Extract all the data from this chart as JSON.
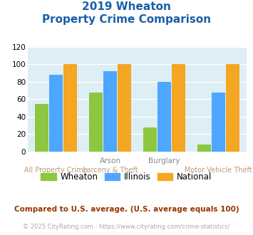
{
  "title_line1": "2019 Wheaton",
  "title_line2": "Property Crime Comparison",
  "wheaton": [
    55,
    68,
    28,
    8
  ],
  "illinois": [
    88,
    92,
    80,
    68
  ],
  "national": [
    100,
    100,
    100,
    100
  ],
  "color_wheaton": "#8dc63f",
  "color_illinois": "#4da6ff",
  "color_national": "#f5a623",
  "color_title": "#1a5fa8",
  "color_bg": "#ddeef4",
  "ylim": [
    0,
    120
  ],
  "yticks": [
    0,
    20,
    40,
    60,
    80,
    100,
    120
  ],
  "legend_labels": [
    "Wheaton",
    "Illinois",
    "National"
  ],
  "row1_labels": [
    [
      "Arson",
      1
    ],
    [
      "Burglary",
      2
    ]
  ],
  "row2_labels": [
    [
      "All Property Crime",
      0
    ],
    [
      "Larceny & Theft",
      1
    ],
    [
      "Motor Vehicle Theft",
      3
    ]
  ],
  "footer_text1": "Compared to U.S. average. (U.S. average equals 100)",
  "footer_text2": "© 2025 CityRating.com - https://www.cityrating.com/crime-statistics/",
  "color_footer1": "#993300",
  "color_footer2": "#aaaaaa",
  "color_row1": "#888888",
  "color_row2": "#bb9977"
}
